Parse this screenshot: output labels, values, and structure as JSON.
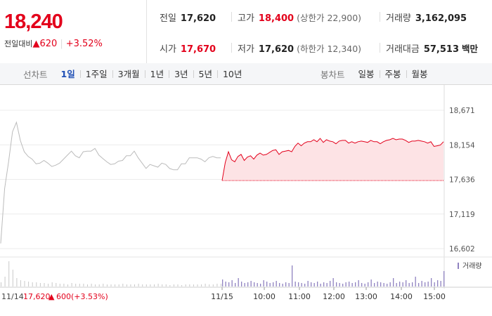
{
  "price": {
    "current": "18,240",
    "change_label": "전일대비",
    "change_arrow": "▲",
    "change_value": "620",
    "change_pct": "+3.52%"
  },
  "stats": [
    {
      "key": "전일",
      "value": "17,620",
      "up": false,
      "sub": ""
    },
    {
      "key": "고가",
      "value": "18,400",
      "up": true,
      "sub": "(상한가 22,900)"
    },
    {
      "key": "거래량",
      "value": "3,162,095",
      "up": false,
      "sub": ""
    },
    {
      "key": "시가",
      "value": "17,670",
      "up": true,
      "sub": ""
    },
    {
      "key": "저가",
      "value": "17,620",
      "up": false,
      "sub": "(하한가 12,340)"
    },
    {
      "key": "거래대금",
      "value": "57,513",
      "up": false,
      "sub": "백만"
    }
  ],
  "line_tabs": {
    "title": "선차트",
    "items": [
      "1일",
      "1주일",
      "3개월",
      "1년",
      "3년",
      "5년",
      "10년"
    ],
    "active": 0
  },
  "candle_tabs": {
    "title": "봉차트",
    "items": [
      "일봉",
      "주봉",
      "월봉"
    ]
  },
  "chart_data": {
    "type": "line",
    "y_ticks": [
      "18,671",
      "18,154",
      "17,636",
      "17,119",
      "16,602"
    ],
    "ylim": [
      16602,
      18671
    ],
    "prev_close": 17620,
    "x_tick_labels": [
      "11/15",
      "10:00",
      "11:00",
      "12:00",
      "13:00",
      "14:00",
      "15:00"
    ],
    "volume_legend": "거래량",
    "footer_left": {
      "date": "11/14",
      "price": "17,620",
      "arrow": "▲",
      "change": "600",
      "pct": "(+3.53%)"
    },
    "colors": {
      "prev_day_line": "#bbbbbb",
      "today_line": "#e3001b",
      "today_fill": "#fde3e5",
      "volume": "#8f82c0"
    },
    "prev_day_series": [
      16680,
      17500,
      17900,
      18350,
      18490,
      18220,
      18050,
      17980,
      17940,
      17870,
      17880,
      17920,
      17880,
      17830,
      17850,
      17880,
      17940,
      18000,
      18060,
      17990,
      17960,
      18050,
      18060,
      18060,
      18100,
      18000,
      17950,
      17900,
      17860,
      17870,
      17910,
      17920,
      17990,
      17990,
      18060,
      17960,
      17880,
      17800,
      17860,
      17840,
      17820,
      17880,
      17860,
      17800,
      17780,
      17780,
      17870,
      17870,
      17960,
      17960,
      17960,
      17940,
      17900,
      17960,
      17980,
      17960,
      17960
    ],
    "today_series": [
      17620,
      17890,
      18050,
      17930,
      17900,
      17980,
      18010,
      17920,
      17970,
      17990,
      17940,
      18000,
      18030,
      18000,
      18010,
      18040,
      18070,
      18080,
      18010,
      18050,
      18060,
      18070,
      18050,
      18130,
      18180,
      18140,
      18180,
      18200,
      18200,
      18230,
      18200,
      18250,
      18190,
      18230,
      18210,
      18200,
      18170,
      18210,
      18220,
      18220,
      18180,
      18200,
      18180,
      18200,
      18210,
      18200,
      18190,
      18220,
      18200,
      18200,
      18170,
      18200,
      18220,
      18230,
      18250,
      18230,
      18240,
      18240,
      18220,
      18190,
      18210,
      18210,
      18220,
      18210,
      18200,
      18180,
      18200,
      18130,
      18140,
      18150,
      18200
    ],
    "prev_day_volume": [
      6,
      14,
      36,
      24,
      12,
      9,
      8,
      7,
      6,
      6,
      5,
      5,
      4,
      6,
      5,
      4,
      4,
      3,
      5,
      4,
      4,
      4,
      3,
      4,
      3,
      3,
      4,
      3,
      3,
      3,
      3,
      4,
      3,
      3,
      3,
      4,
      3,
      3,
      3,
      3,
      4,
      3,
      3,
      2,
      3,
      3,
      2,
      3,
      3,
      3,
      3,
      3,
      4,
      3,
      3,
      4,
      4
    ],
    "today_volume": [
      10,
      7,
      6,
      9,
      5,
      12,
      7,
      5,
      6,
      8,
      6,
      5,
      4,
      9,
      7,
      5,
      6,
      8,
      5,
      4,
      6,
      5,
      30,
      7,
      6,
      5,
      4,
      8,
      6,
      5,
      7,
      4,
      6,
      5,
      8,
      12,
      6,
      5,
      4,
      6,
      7,
      5,
      6,
      9,
      5,
      4,
      6,
      10,
      5,
      7,
      6,
      5,
      4,
      6,
      12,
      5,
      7,
      6,
      9,
      5,
      6,
      14,
      5,
      8,
      6,
      7,
      12,
      6,
      9,
      8,
      22
    ]
  }
}
